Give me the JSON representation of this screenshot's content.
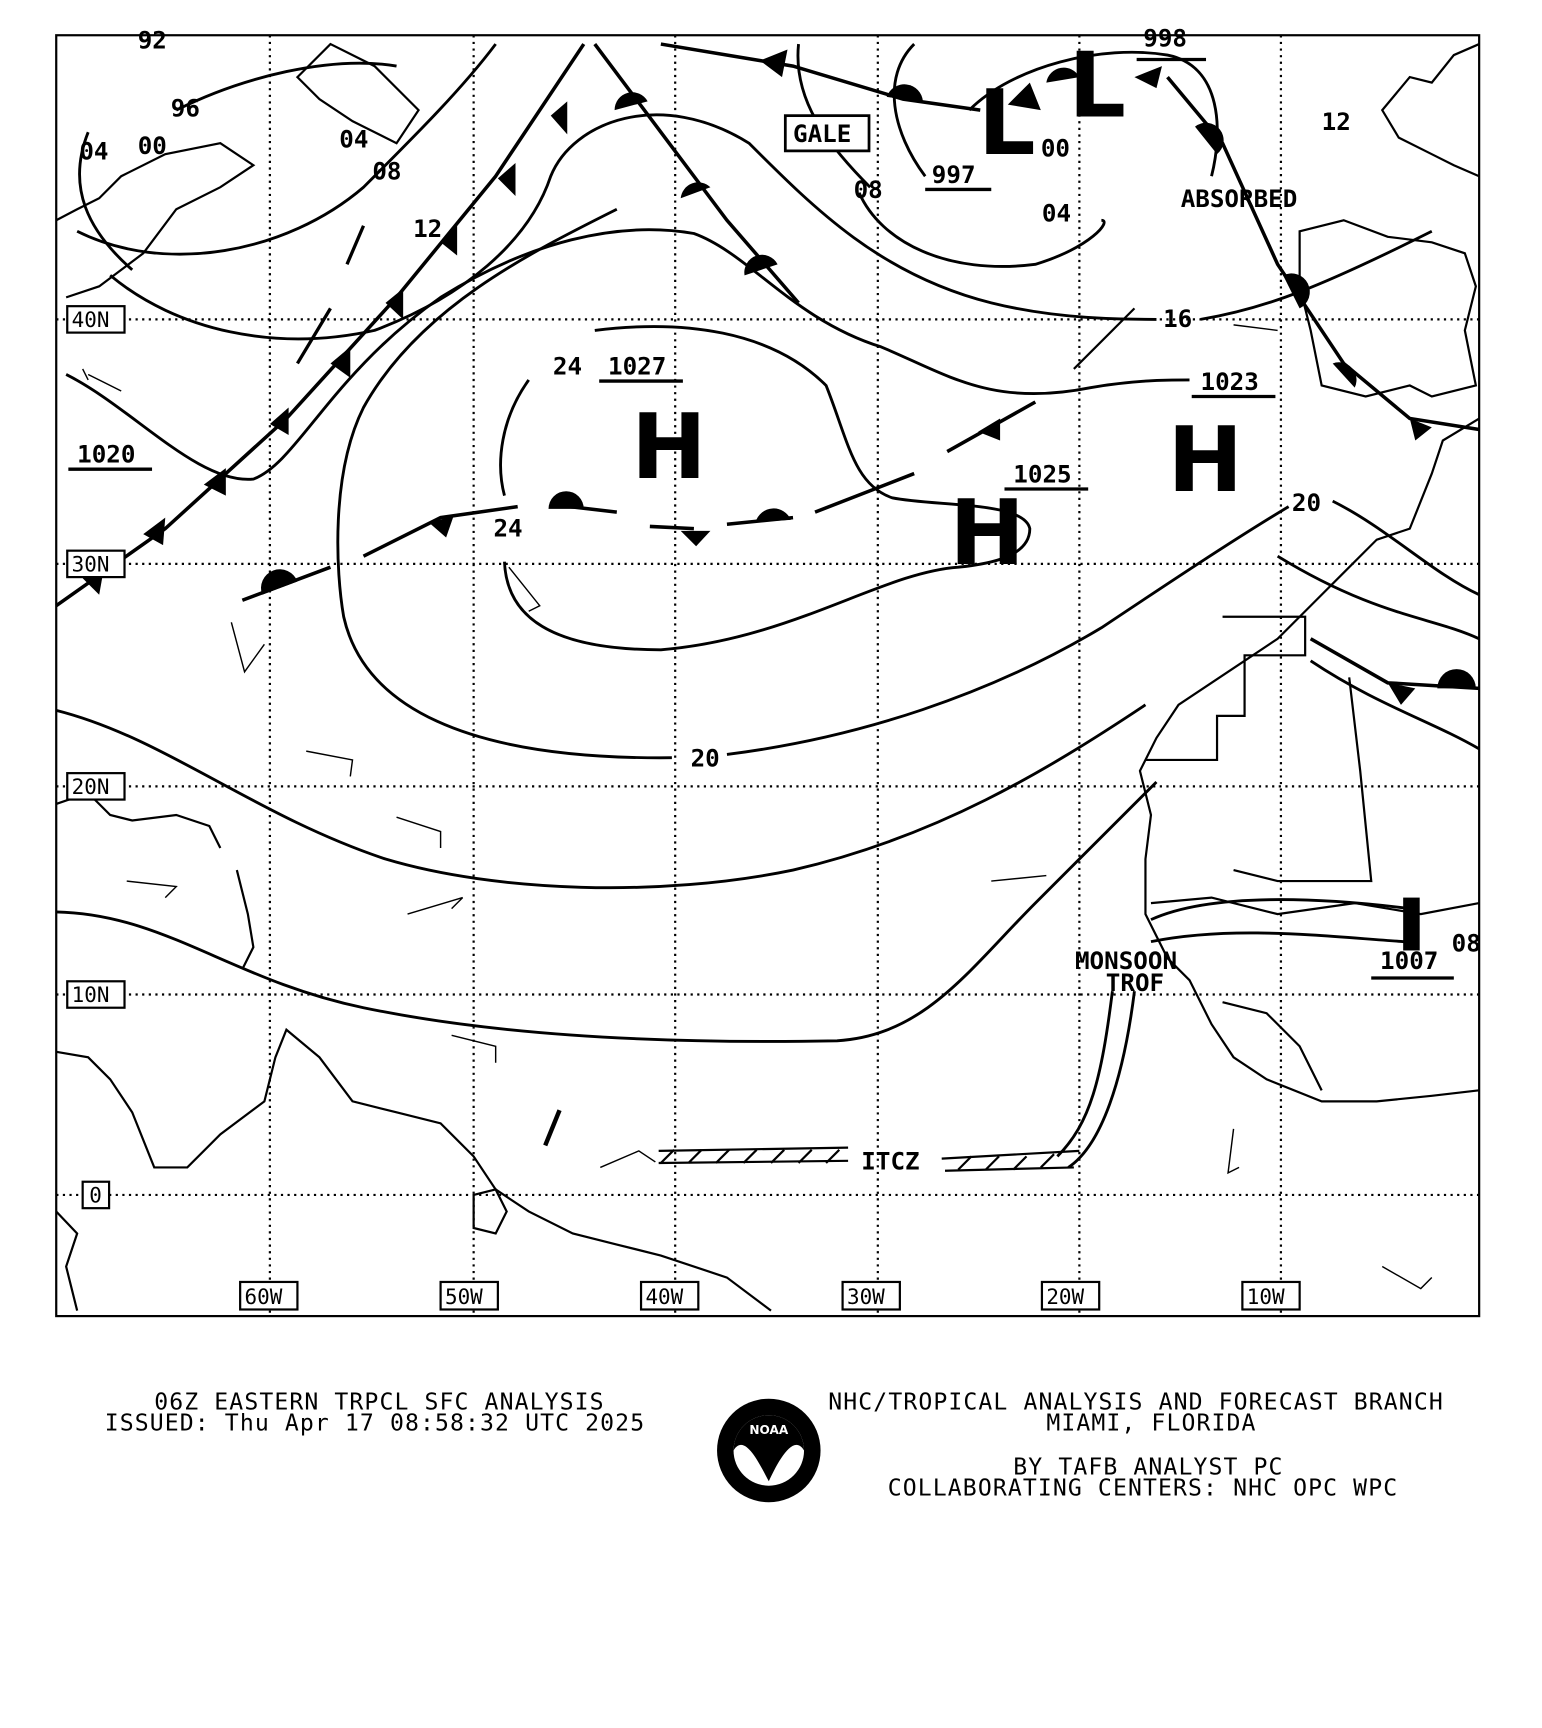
{
  "map": {
    "latitude_labels": [
      "40N",
      "30N",
      "20N",
      "10N",
      "0"
    ],
    "longitude_labels": [
      "60W",
      "50W",
      "40W",
      "30W",
      "20W",
      "10W"
    ],
    "pressure_centers": [
      {
        "type": "H",
        "value": "1027"
      },
      {
        "type": "H",
        "value": "1025"
      },
      {
        "type": "H",
        "value": "1023"
      },
      {
        "type": "L",
        "value": "997"
      },
      {
        "type": "L",
        "value": "998"
      },
      {
        "type": "L",
        "value": "1007"
      },
      {
        "type": "H",
        "value": "1020"
      }
    ],
    "isobar_labels": [
      "92",
      "96",
      "04",
      "00",
      "04",
      "08",
      "12",
      "08",
      "00",
      "04",
      "12",
      "16",
      "24",
      "24",
      "20",
      "20",
      "08"
    ],
    "annotations": {
      "gale": "GALE",
      "absorbed": "ABSORBED",
      "monsoon": "MONSOON",
      "trof": "TROF",
      "itcz": "ITCZ"
    }
  },
  "footer": {
    "title": "06Z EASTERN TRPCL SFC ANALYSIS",
    "issued": "ISSUED: Thu Apr 17 08:58:32 UTC 2025",
    "branch": "NHC/TROPICAL ANALYSIS AND FORECAST BRANCH",
    "location": "MIAMI,  FLORIDA",
    "analyst": "BY TAFB ANALYST  PC",
    "centers": "COLLABORATING CENTERS: NHC OPC WPC",
    "logo_text": "NOAA"
  }
}
